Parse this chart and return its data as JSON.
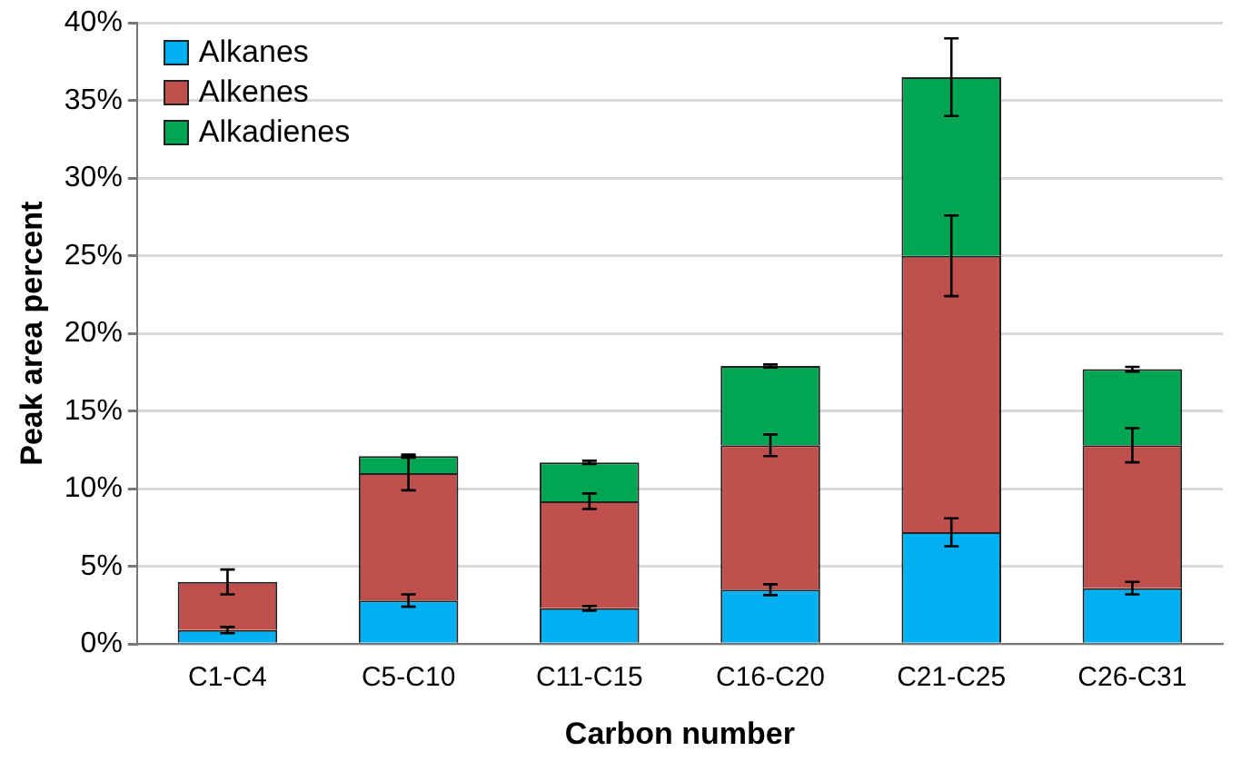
{
  "chart_data": {
    "type": "bar",
    "stacked": true,
    "xlabel": "Carbon number",
    "ylabel": "Peak area percent",
    "categories": [
      "C1-C4",
      "C5-C10",
      "C11-C15",
      "C16-C20",
      "C21-C25",
      "C26-C31"
    ],
    "series": [
      {
        "name": "Alkanes",
        "color": "#00b0f0",
        "values": [
          0.9,
          2.8,
          2.3,
          3.5,
          7.2,
          3.6
        ],
        "errors": [
          0.2,
          0.4,
          0.15,
          0.35,
          0.9,
          0.4
        ]
      },
      {
        "name": "Alkenes",
        "color": "#c0504d",
        "values": [
          3.1,
          8.2,
          6.9,
          9.3,
          17.8,
          9.2
        ],
        "errors": [
          0.8,
          1.1,
          0.5,
          0.7,
          2.6,
          1.1
        ]
      },
      {
        "name": "Alkadienes",
        "color": "#00a651",
        "values": [
          null,
          1.1,
          2.5,
          5.1,
          11.5,
          4.9
        ],
        "errors": [
          null,
          0.1,
          0.1,
          0.1,
          2.5,
          0.15
        ]
      }
    ],
    "ylim": [
      0,
      40
    ],
    "yticks": [
      {
        "value": 0,
        "label": "0%"
      },
      {
        "value": 5,
        "label": "5%"
      },
      {
        "value": 10,
        "label": "10%"
      },
      {
        "value": 15,
        "label": "15%"
      },
      {
        "value": 20,
        "label": "20%"
      },
      {
        "value": 25,
        "label": "25%"
      },
      {
        "value": 30,
        "label": "30%"
      },
      {
        "value": 35,
        "label": "35%"
      },
      {
        "value": 40,
        "label": "40%"
      }
    ],
    "grid": "y",
    "legend": "top left"
  }
}
